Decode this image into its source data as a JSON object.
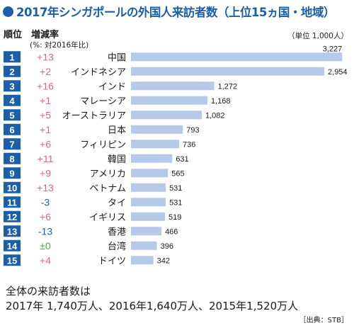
{
  "title": "2017年シンガポールの外国人来訪者数（上位15ヵ国・地域）",
  "headers": {
    "rank": "順位",
    "change": "増減率",
    "change_note": "(%: 対2016年比)",
    "unit": "（単位 1,000人）"
  },
  "colors": {
    "title": "#1a5fa8",
    "rank_box": "#1a5fa8",
    "bar": "#b6c9e8",
    "positive": "#e2628f",
    "negative": "#1a5fa8",
    "zero": "#4aa84a"
  },
  "chart_data": {
    "type": "bar",
    "orientation": "horizontal",
    "categories": [
      "中国",
      "インドネシア",
      "インド",
      "マレーシア",
      "オーストラリア",
      "日本",
      "フィリピン",
      "韓国",
      "アメリカ",
      "ベトナム",
      "タイ",
      "イギリス",
      "香港",
      "台湾",
      "ドイツ"
    ],
    "ranks": [
      "1",
      "2",
      "3",
      "4",
      "5",
      "6",
      "7",
      "8",
      "9",
      "10",
      "11",
      "12",
      "13",
      "14",
      "15"
    ],
    "values": [
      3227,
      2954,
      1272,
      1168,
      1082,
      793,
      736,
      631,
      565,
      531,
      531,
      519,
      466,
      396,
      342
    ],
    "value_labels": [
      "3,227",
      "2,954",
      "1,272",
      "1,168",
      "1,082",
      "793",
      "736",
      "631",
      "565",
      "531",
      "531",
      "519",
      "466",
      "396",
      "342"
    ],
    "change_labels": [
      "+13",
      "+2",
      "+16",
      "+1",
      "+5",
      "+1",
      "+6",
      "+11",
      "+9",
      "+13",
      "-3",
      "+6",
      "-13",
      "±0",
      "+4"
    ],
    "change_sign": [
      "positive",
      "positive",
      "positive",
      "positive",
      "positive",
      "positive",
      "positive",
      "positive",
      "positive",
      "positive",
      "negative",
      "positive",
      "negative",
      "zero",
      "positive"
    ],
    "xlim": [
      0,
      3300
    ]
  },
  "footer": {
    "line1": "全体の来訪者数は",
    "line2": "2017年 1,740万人、2016年1,640万人、2015年1,520万人",
    "source": "［出典：STB］"
  }
}
